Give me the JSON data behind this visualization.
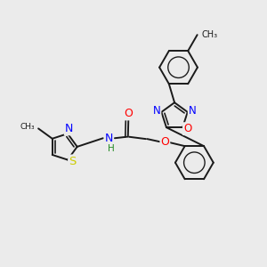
{
  "background_color": "#ebebeb",
  "bond_color": "#1a1a1a",
  "atom_colors": {
    "N": "#0000ff",
    "O": "#ff0000",
    "S": "#cccc00",
    "H": "#228B22"
  },
  "figsize": [
    3.0,
    3.0
  ],
  "dpi": 100,
  "bond_lw": 1.4,
  "font_size": 8.5
}
